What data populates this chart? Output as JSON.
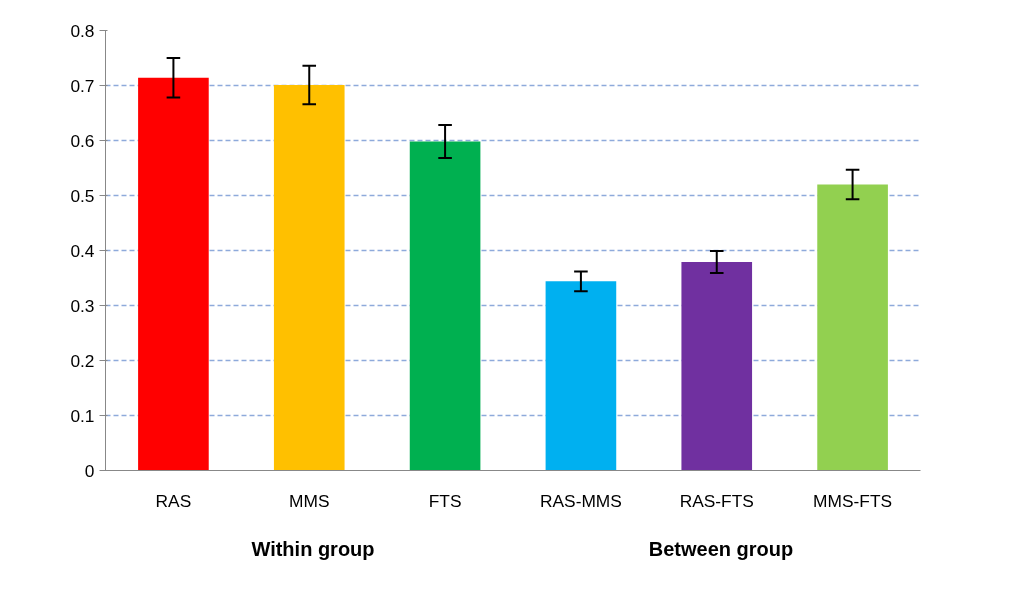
{
  "chart_data": {
    "type": "bar",
    "categories": [
      "RAS",
      "MMS",
      "FTS",
      "RAS-MMS",
      "RAS-FTS",
      "MMS-FTS"
    ],
    "values": [
      0.714,
      0.701,
      0.598,
      0.344,
      0.379,
      0.52
    ],
    "colors": [
      "#ff0000",
      "#ffc000",
      "#00b050",
      "#00b0f0",
      "#7030a0",
      "#92d050"
    ],
    "errors": [
      0.036,
      0.035,
      0.03,
      0.018,
      0.02,
      0.027
    ],
    "ylim": [
      0,
      0.8
    ],
    "yticks": [
      0,
      0.1,
      0.2,
      0.3,
      0.4,
      0.5,
      0.6,
      0.7,
      0.8
    ],
    "grid": "y",
    "annotations": [
      "Within group",
      "Between group"
    ]
  }
}
